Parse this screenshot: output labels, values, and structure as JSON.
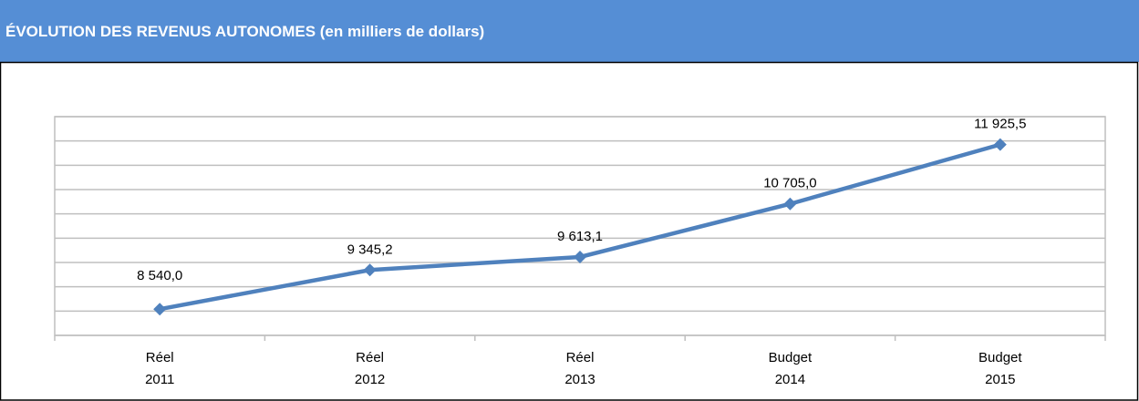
{
  "chart_data": {
    "type": "line",
    "title": "ÉVOLUTION DES REVENUS AUTONOMES (en milliers de dollars)",
    "categories": [
      [
        "Réel",
        "2011"
      ],
      [
        "Réel",
        "2012"
      ],
      [
        "Réel",
        "2013"
      ],
      [
        "Budget",
        "2014"
      ],
      [
        "Budget",
        "2015"
      ]
    ],
    "values": [
      8540.0,
      9345.2,
      9613.1,
      10705.0,
      11925.5
    ],
    "value_labels": [
      "8 540,0",
      "9 345,2",
      "9 613,1",
      "10 705,0",
      "11 925,5"
    ],
    "color": "#4f81bd",
    "ylim": [
      8000,
      12500
    ],
    "yticks": [
      8000,
      8500,
      9000,
      9500,
      10000,
      10500,
      11000,
      11500,
      12000,
      12500
    ],
    "grid": true
  }
}
